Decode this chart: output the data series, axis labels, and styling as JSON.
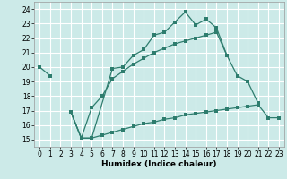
{
  "xlabel": "Humidex (Indice chaleur)",
  "bg_color": "#cceae8",
  "grid_color": "#ffffff",
  "line_color": "#2e7d6e",
  "xlim": [
    -0.5,
    23.5
  ],
  "ylim": [
    14.5,
    24.5
  ],
  "xticks": [
    0,
    1,
    2,
    3,
    4,
    5,
    6,
    7,
    8,
    9,
    10,
    11,
    12,
    13,
    14,
    15,
    16,
    17,
    18,
    19,
    20,
    21,
    22,
    23
  ],
  "yticks": [
    15,
    16,
    17,
    18,
    19,
    20,
    21,
    22,
    23,
    24
  ],
  "curve1_x": [
    0,
    1,
    3,
    4,
    5,
    7,
    8,
    9,
    10,
    11,
    12,
    13,
    14,
    15,
    16,
    17,
    18
  ],
  "curve1_y": [
    20.0,
    19.4,
    16.9,
    15.1,
    15.1,
    19.9,
    20.0,
    20.8,
    21.2,
    22.2,
    22.4,
    23.1,
    23.8,
    22.9,
    23.3,
    22.7,
    20.8
  ],
  "curve2_x": [
    3,
    4,
    5,
    6,
    7,
    8,
    9,
    10,
    11,
    12,
    13,
    14,
    15,
    16,
    17,
    18,
    19,
    20,
    21
  ],
  "curve2_y": [
    16.9,
    15.1,
    17.2,
    18.0,
    19.2,
    19.7,
    20.2,
    20.6,
    21.0,
    21.3,
    21.6,
    21.8,
    22.0,
    22.2,
    22.4,
    20.8,
    19.4,
    19.0,
    17.5
  ],
  "curve3_x": [
    3,
    4,
    5,
    6,
    7,
    8,
    9,
    10,
    11,
    12,
    13,
    14,
    15,
    16,
    17,
    18,
    19,
    20,
    21,
    22,
    23
  ],
  "curve3_y": [
    16.9,
    15.1,
    15.1,
    15.3,
    15.5,
    15.7,
    15.9,
    16.1,
    16.2,
    16.4,
    16.5,
    16.7,
    16.8,
    16.9,
    17.0,
    17.1,
    17.2,
    17.3,
    17.4,
    16.5,
    16.5
  ]
}
